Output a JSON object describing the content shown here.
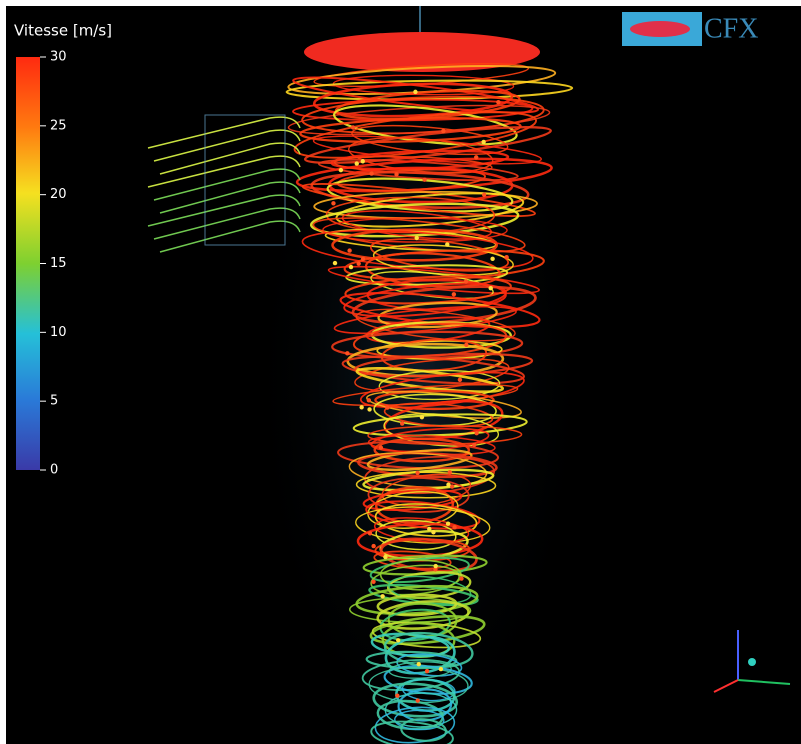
{
  "legend": {
    "title": "Vitesse [m/s]",
    "range": [
      0,
      30
    ],
    "ticks": [
      30,
      25,
      20,
      15,
      10,
      5,
      0
    ]
  },
  "logo": "CFX"
}
